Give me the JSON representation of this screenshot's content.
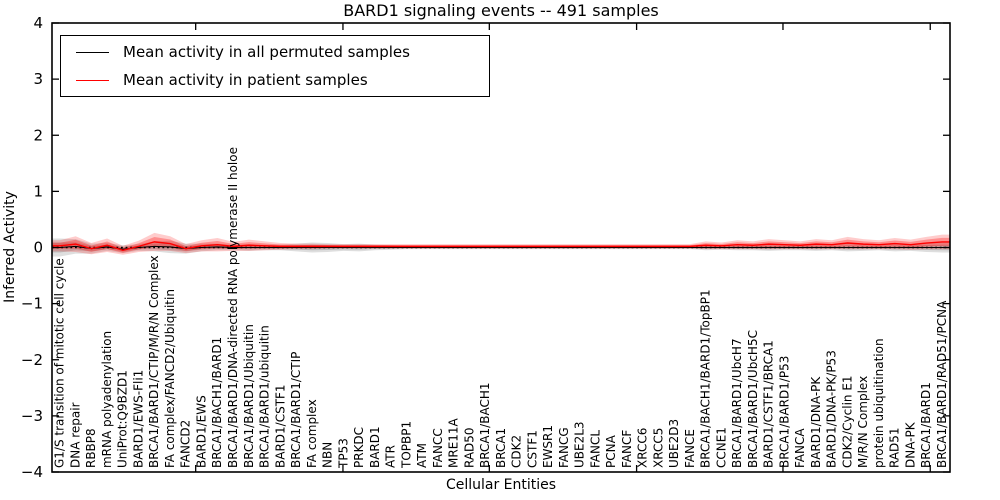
{
  "chart_data": {
    "type": "line",
    "title": "BARD1 signaling events -- 491 samples",
    "xlabel": "Cellular Entities",
    "ylabel": "Inferred Activity",
    "ylim": [
      -4,
      4
    ],
    "yticks": [
      4,
      3,
      2,
      1,
      0,
      -1,
      -2,
      -3,
      -4
    ],
    "ytick_labels": [
      "4",
      "3",
      "2",
      "1",
      "0",
      "−1",
      "−2",
      "−3",
      "−4"
    ],
    "grid": false,
    "zero_line": "dotted",
    "legend_position": "upper left",
    "categories": [
      "G1/S transition of mitotic cell cycle",
      "DNA repair",
      "RBBP8",
      "mRNA polyadenylation",
      "UniProt:Q9BZD1",
      "BARD1/EWS-Fli1",
      "BRCA1/BARD1/CTIP/M/R/N Complex",
      "FA complex/FANCD2/Ubiquitin",
      "FANCD2",
      "BARD1/EWS",
      "BRCA1/BACH1/BARD1",
      "BRCA1/BARD1/DNA-directed RNA polymerase II holoe",
      "BRCA1/BARD1/Ubiquitin",
      "BRCA1/BARD1/ubiquitin",
      "BARD1/CSTF1",
      "BRCA1/BARD1/CTIP",
      "FA complex",
      "NBN",
      "TP53",
      "PRKDC",
      "BARD1",
      "ATR",
      "TOPBP1",
      "ATM",
      "FANCC",
      "MRE11A",
      "RAD50",
      "BRCA1/BACH1",
      "BRCA1",
      "CDK2",
      "CSTF1",
      "EWSR1",
      "FANCG",
      "UBE2L3",
      "FANCL",
      "PCNA",
      "FANCF",
      "XRCC6",
      "XRCC5",
      "UBE2D3",
      "FANCE",
      "BRCA1/BACH1/BARD1/TopBP1",
      "CCNE1",
      "BRCA1/BARD1/UbcH7",
      "BRCA1/BARD1/UbcH5C",
      "BARD1/CSTF1/BRCA1",
      "BRCA1/BARD1/P53",
      "FANCA",
      "BARD1/DNA-PK",
      "BARD1/DNA-PK/P53",
      "CDK2/Cyclin E1",
      "M/R/N Complex",
      "protein ubiquitination",
      "RAD51",
      "DNA-PK",
      "BRCA1/BARD1",
      "BRCA1/BARD1/RAD51/PCNA"
    ],
    "series": [
      {
        "name": "Mean activity in all permuted samples",
        "color": "#000000",
        "band_color": "#000000",
        "values": [
          0,
          0.02,
          -0.02,
          0.01,
          -0.03,
          0,
          0.02,
          0.01,
          -0.02,
          0,
          0.01,
          0,
          0,
          0,
          0,
          0,
          0,
          0,
          0,
          0,
          0,
          0,
          0,
          0,
          0,
          0,
          0,
          0,
          0,
          0,
          0,
          0,
          0,
          0,
          0,
          0,
          0,
          0,
          0,
          0,
          0,
          0,
          0,
          0,
          0,
          0,
          0,
          0,
          0,
          0,
          0,
          0,
          0,
          0,
          0,
          0,
          0
        ],
        "spread": [
          0.16,
          0.13,
          0.09,
          0.07,
          0.07,
          0.06,
          0.09,
          0.11,
          0.09,
          0.07,
          0.06,
          0.05,
          0.06,
          0.05,
          0.05,
          0.07,
          0.09,
          0.08,
          0.06,
          0.07,
          0.05,
          0.04,
          0.03,
          0.03,
          0.03,
          0.03,
          0.03,
          0.03,
          0.03,
          0.03,
          0.03,
          0.03,
          0.03,
          0.03,
          0.03,
          0.03,
          0.03,
          0.03,
          0.03,
          0.03,
          0.03,
          0.05,
          0.04,
          0.05,
          0.05,
          0.06,
          0.05,
          0.05,
          0.06,
          0.05,
          0.07,
          0.06,
          0.05,
          0.07,
          0.06,
          0.08,
          0.09
        ]
      },
      {
        "name": "Mean activity in patient samples",
        "color": "#ff0000",
        "band_color": "#ff0000",
        "values": [
          0.03,
          0.06,
          -0.02,
          0.04,
          -0.05,
          0.02,
          0.1,
          0.07,
          -0.02,
          0.03,
          0.05,
          0.02,
          0.04,
          0.03,
          0.02,
          0.02,
          0.02,
          0.02,
          0.02,
          0.02,
          0.02,
          0.02,
          0.02,
          0.02,
          0.02,
          0.02,
          0.02,
          0.02,
          0.02,
          0.02,
          0.02,
          0.02,
          0.02,
          0.02,
          0.02,
          0.02,
          0.02,
          0.02,
          0.02,
          0.02,
          0.02,
          0.04,
          0.03,
          0.05,
          0.04,
          0.06,
          0.05,
          0.04,
          0.06,
          0.05,
          0.08,
          0.06,
          0.05,
          0.07,
          0.05,
          0.08,
          0.1
        ],
        "spread": [
          0.1,
          0.14,
          0.1,
          0.12,
          0.08,
          0.1,
          0.16,
          0.13,
          0.08,
          0.1,
          0.12,
          0.08,
          0.1,
          0.08,
          0.06,
          0.05,
          0.05,
          0.04,
          0.04,
          0.04,
          0.04,
          0.04,
          0.04,
          0.04,
          0.04,
          0.04,
          0.04,
          0.04,
          0.04,
          0.04,
          0.04,
          0.04,
          0.04,
          0.04,
          0.04,
          0.04,
          0.04,
          0.04,
          0.04,
          0.04,
          0.04,
          0.07,
          0.06,
          0.08,
          0.07,
          0.09,
          0.08,
          0.07,
          0.09,
          0.08,
          0.11,
          0.09,
          0.08,
          0.1,
          0.09,
          0.11,
          0.13
        ]
      }
    ]
  }
}
